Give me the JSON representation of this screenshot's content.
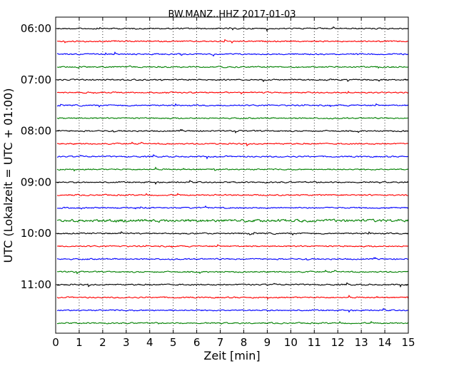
{
  "chart_data": {
    "type": "line",
    "title": "BW.MANZ..HHZ 2017-01-03",
    "xlabel": "Zeit  [min]",
    "ylabel": "UTC (Lokalzeit = UTC + 01:00)",
    "xlim": [
      0,
      15
    ],
    "x_ticks": [
      "0",
      "1",
      "2",
      "3",
      "4",
      "5",
      "6",
      "7",
      "8",
      "9",
      "10",
      "11",
      "12",
      "13",
      "14",
      "15"
    ],
    "y_ticks": [
      "06:00",
      "07:00",
      "08:00",
      "09:00",
      "10:00",
      "11:00"
    ],
    "grid": "vertical dotted lines at each minute",
    "trace_interval_minutes": 15,
    "first_trace_start": "06:00",
    "colors": [
      "#000000",
      "#ff0000",
      "#0000ff",
      "#008000"
    ],
    "series": [
      {
        "start": "06:00",
        "color": "#000000"
      },
      {
        "start": "06:15",
        "color": "#ff0000"
      },
      {
        "start": "06:30",
        "color": "#0000ff"
      },
      {
        "start": "06:45",
        "color": "#008000"
      },
      {
        "start": "07:00",
        "color": "#000000"
      },
      {
        "start": "07:15",
        "color": "#ff0000"
      },
      {
        "start": "07:30",
        "color": "#0000ff"
      },
      {
        "start": "07:45",
        "color": "#008000"
      },
      {
        "start": "08:00",
        "color": "#000000"
      },
      {
        "start": "08:15",
        "color": "#ff0000"
      },
      {
        "start": "08:30",
        "color": "#0000ff"
      },
      {
        "start": "08:45",
        "color": "#008000"
      },
      {
        "start": "09:00",
        "color": "#000000"
      },
      {
        "start": "09:15",
        "color": "#ff0000"
      },
      {
        "start": "09:30",
        "color": "#0000ff"
      },
      {
        "start": "09:45",
        "color": "#008000"
      },
      {
        "start": "10:00",
        "color": "#000000"
      },
      {
        "start": "10:15",
        "color": "#ff0000"
      },
      {
        "start": "10:30",
        "color": "#0000ff"
      },
      {
        "start": "10:45",
        "color": "#008000"
      },
      {
        "start": "11:00",
        "color": "#000000"
      },
      {
        "start": "11:15",
        "color": "#ff0000"
      },
      {
        "start": "11:30",
        "color": "#0000ff"
      },
      {
        "start": "11:45",
        "color": "#008000"
      }
    ]
  }
}
